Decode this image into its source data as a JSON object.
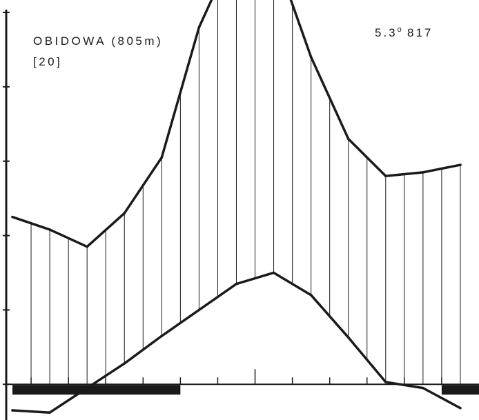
{
  "header": {
    "station_name": "OBIDOWA (805m)",
    "years": "[20]",
    "mean_temp_value": "5.3",
    "degree_symbol": "o",
    "annual_precip": "817"
  },
  "chart_data": {
    "type": "line",
    "subtype": "walter-lieth-climate-diagram",
    "x": [
      0,
      1,
      2,
      3,
      4,
      5,
      6,
      7,
      8,
      9,
      10,
      11,
      12
    ],
    "xlim": [
      0,
      12.5
    ],
    "ylim": [
      -4.8,
      50
    ],
    "grid": false,
    "series": [
      {
        "role": "precipitation",
        "values": [
          22.5,
          20.8,
          18.5,
          23,
          30.5,
          48,
          59,
          58.2,
          44,
          33,
          28,
          28.5,
          29.5
        ]
      },
      {
        "role": "temperature",
        "values": [
          -3.5,
          -3.8,
          -0.5,
          2.8,
          6.5,
          10,
          13.5,
          15,
          12,
          6.3,
          0.3,
          -0.5,
          -3.2
        ]
      }
    ],
    "frost_bars": [
      [
        0,
        4.5
      ],
      [
        11.5,
        12.5
      ]
    ]
  },
  "colors": {
    "ink": "#1a1a1a",
    "background": "#ffffff"
  }
}
